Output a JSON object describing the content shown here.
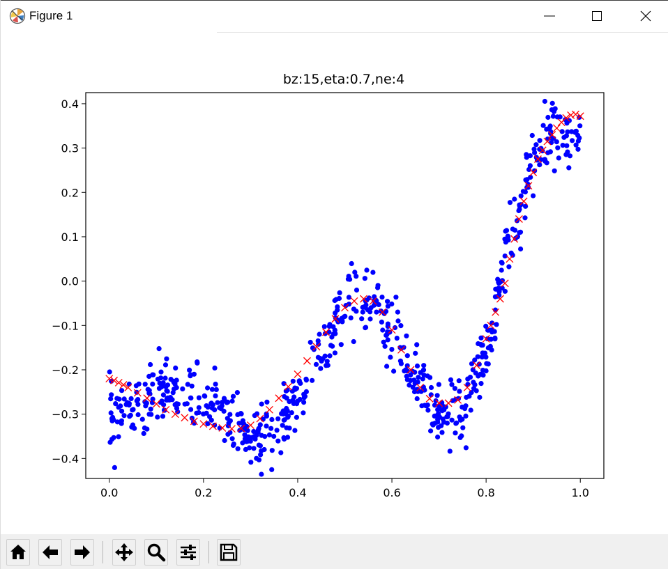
{
  "window": {
    "title": "Figure 1",
    "icon": "matplotlib-logo-icon",
    "controls": [
      "minimize-icon",
      "maximize-icon",
      "close-icon"
    ]
  },
  "toolbar": {
    "buttons": [
      {
        "name": "home-button",
        "icon": "home-icon"
      },
      {
        "name": "back-button",
        "icon": "arrow-left-icon"
      },
      {
        "name": "forward-button",
        "icon": "arrow-right-icon"
      },
      {
        "name": "pan-button",
        "icon": "move-arrows-icon"
      },
      {
        "name": "zoom-button",
        "icon": "magnifier-icon"
      },
      {
        "name": "configure-subplots-button",
        "icon": "sliders-icon"
      },
      {
        "name": "save-button",
        "icon": "floppy-disk-icon"
      }
    ]
  },
  "chart_data": {
    "type": "scatter",
    "title": "bz:15,eta:0.7,ne:4",
    "xlabel": "",
    "ylabel": "",
    "xlim": [
      -0.05,
      1.05
    ],
    "ylim": [
      -0.445,
      0.425
    ],
    "xticks": [
      0.0,
      0.2,
      0.4,
      0.6,
      0.8,
      1.0
    ],
    "xtick_labels": [
      "0.0",
      "0.2",
      "0.4",
      "0.6",
      "0.8",
      "1.0"
    ],
    "yticks": [
      -0.4,
      -0.3,
      -0.2,
      -0.1,
      0.0,
      0.1,
      0.2,
      0.3,
      0.4
    ],
    "ytick_labels": [
      "−0.4",
      "−0.3",
      "−0.2",
      "−0.1",
      "0.0",
      "0.1",
      "0.2",
      "0.3",
      "0.4"
    ],
    "grid": false,
    "legend": "none",
    "series": [
      {
        "marker": "dot",
        "color": "#0000ff",
        "n_points": 700,
        "x_range": [
          0.0,
          1.0
        ],
        "noise_sd": 0.035,
        "curve_x": [
          0.0,
          0.05,
          0.1,
          0.15,
          0.2,
          0.25,
          0.3,
          0.35,
          0.4,
          0.45,
          0.5,
          0.55,
          0.6,
          0.65,
          0.7,
          0.75,
          0.8,
          0.85,
          0.9,
          0.95,
          1.0
        ],
        "curve_y": [
          -0.3,
          -0.29,
          -0.26,
          -0.25,
          -0.27,
          -0.31,
          -0.36,
          -0.34,
          -0.27,
          -0.17,
          -0.05,
          -0.04,
          -0.1,
          -0.21,
          -0.3,
          -0.3,
          -0.15,
          0.08,
          0.27,
          0.34,
          0.33
        ]
      },
      {
        "marker": "x",
        "color": "#ff0000",
        "x": [
          0.0,
          0.01,
          0.02,
          0.03,
          0.04,
          0.06,
          0.08,
          0.1,
          0.12,
          0.14,
          0.16,
          0.18,
          0.2,
          0.22,
          0.24,
          0.26,
          0.28,
          0.3,
          0.32,
          0.34,
          0.36,
          0.38,
          0.4,
          0.42,
          0.44,
          0.46,
          0.48,
          0.5,
          0.52,
          0.54,
          0.56,
          0.58,
          0.6,
          0.62,
          0.64,
          0.66,
          0.68,
          0.7,
          0.72,
          0.74,
          0.76,
          0.78,
          0.8,
          0.81,
          0.82,
          0.83,
          0.84,
          0.85,
          0.86,
          0.87,
          0.88,
          0.89,
          0.9,
          0.91,
          0.92,
          0.93,
          0.94,
          0.95,
          0.96,
          0.97,
          0.98,
          0.99,
          1.0
        ],
        "y": [
          -0.22,
          -0.224,
          -0.229,
          -0.234,
          -0.24,
          -0.252,
          -0.264,
          -0.277,
          -0.29,
          -0.3,
          -0.308,
          -0.316,
          -0.322,
          -0.327,
          -0.331,
          -0.333,
          -0.332,
          -0.325,
          -0.31,
          -0.29,
          -0.264,
          -0.238,
          -0.21,
          -0.18,
          -0.148,
          -0.115,
          -0.085,
          -0.06,
          -0.045,
          -0.04,
          -0.045,
          -0.07,
          -0.11,
          -0.155,
          -0.2,
          -0.24,
          -0.265,
          -0.275,
          -0.275,
          -0.268,
          -0.24,
          -0.19,
          -0.13,
          -0.1,
          -0.07,
          -0.04,
          -0.005,
          0.05,
          0.095,
          0.14,
          0.18,
          0.215,
          0.245,
          0.275,
          0.295,
          0.315,
          0.33,
          0.345,
          0.358,
          0.368,
          0.374,
          0.376,
          0.372
        ]
      }
    ]
  }
}
